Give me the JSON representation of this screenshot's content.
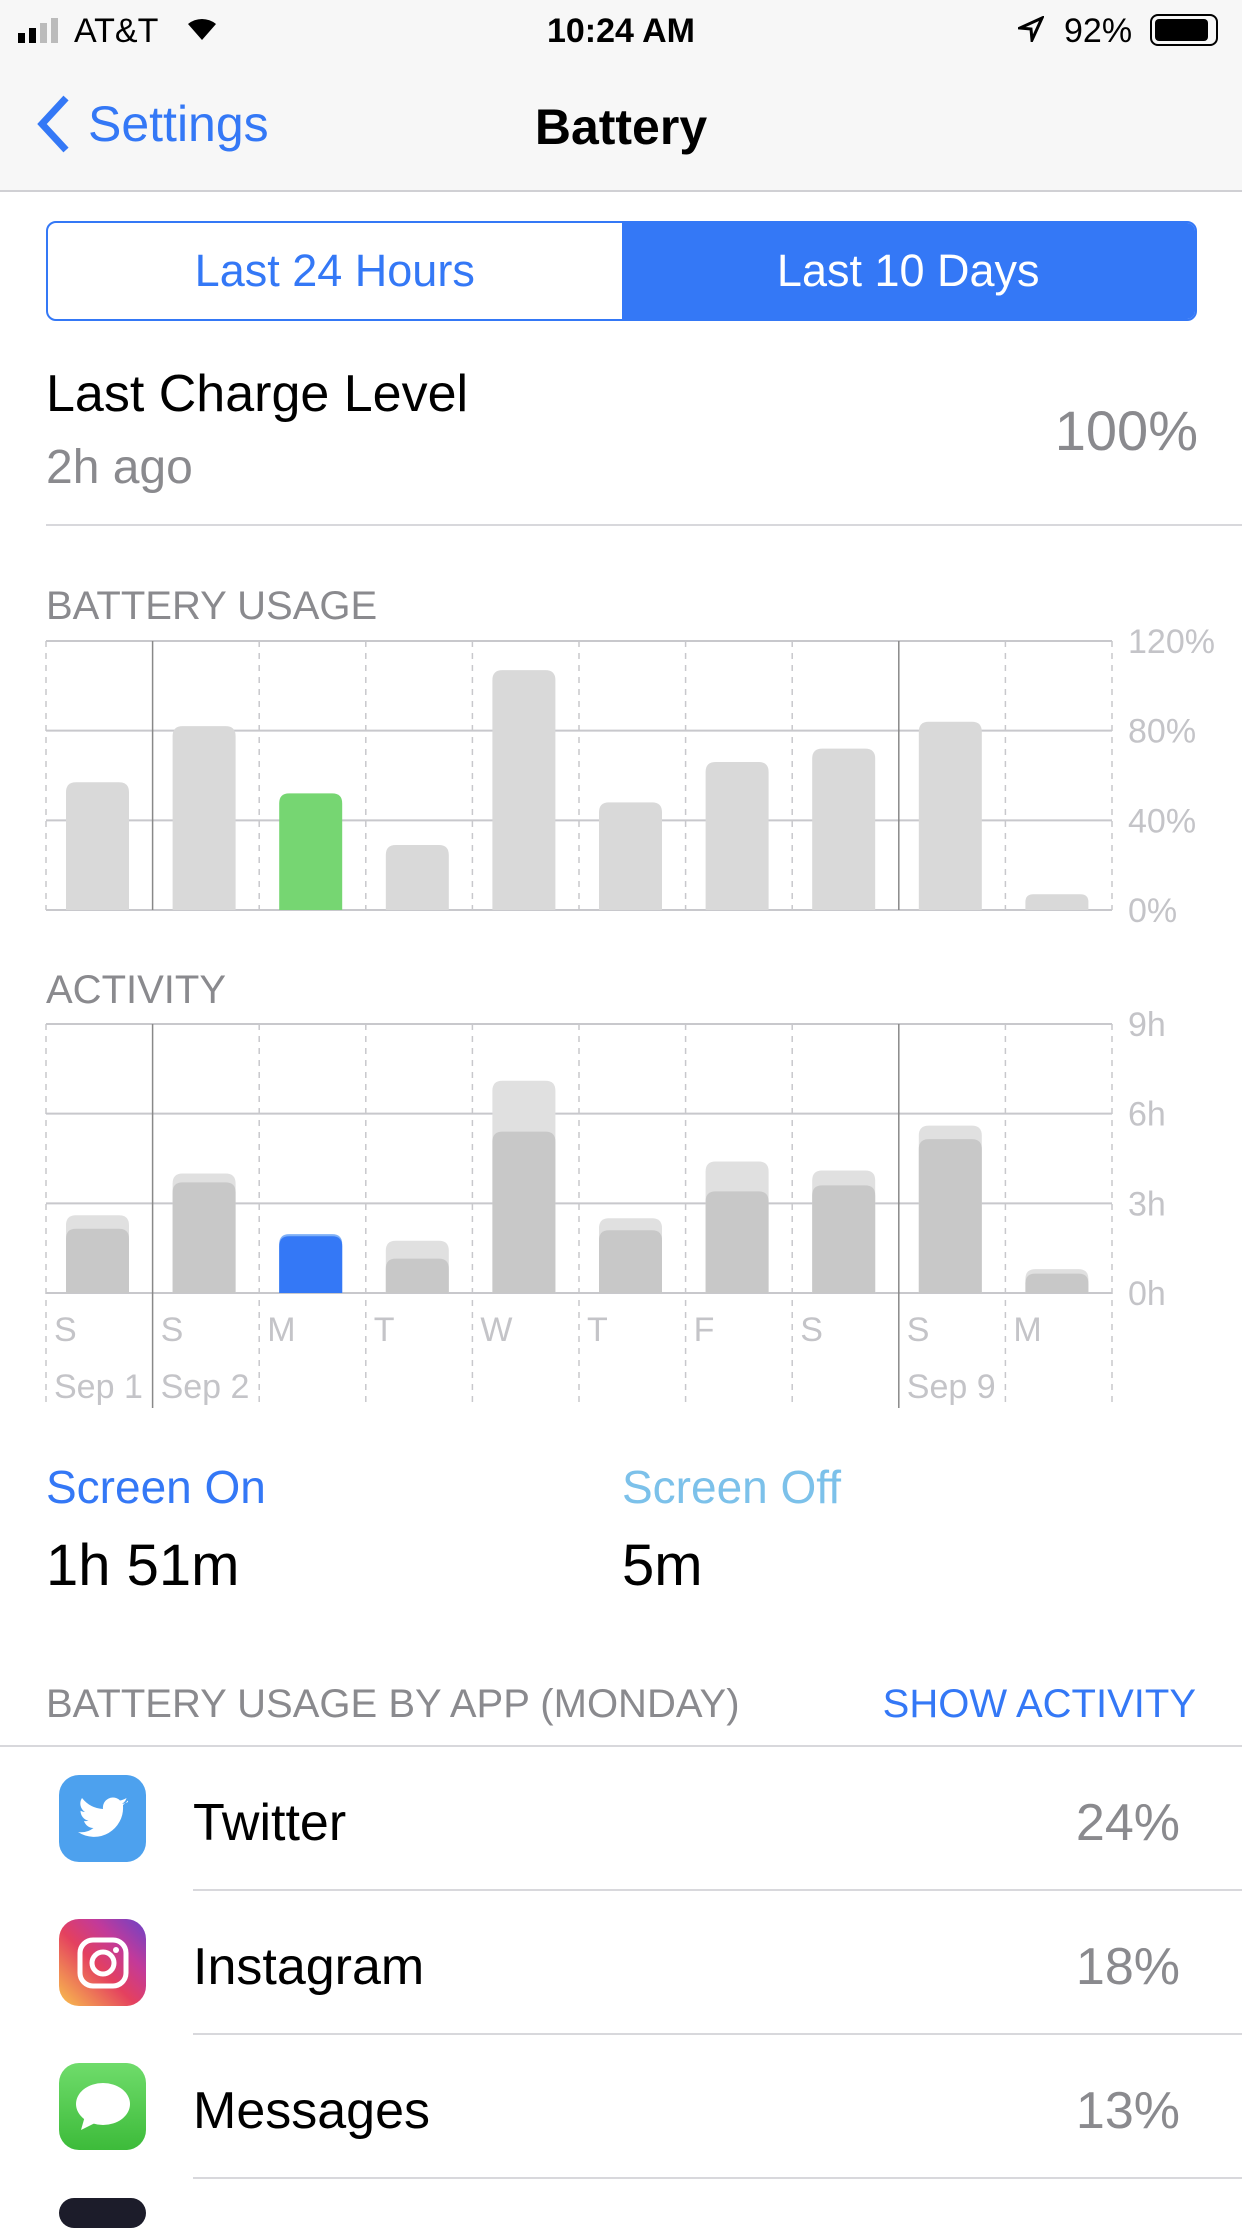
{
  "status": {
    "carrier": "AT&T",
    "time": "10:24 AM",
    "battery": "92%",
    "battery_level": 0.92
  },
  "nav": {
    "back": "Settings",
    "title": "Battery"
  },
  "segments": [
    {
      "label": "Last 24 Hours",
      "selected": false
    },
    {
      "label": "Last 10 Days",
      "selected": true
    }
  ],
  "last_charge": {
    "title": "Last Charge Level",
    "time": "2h ago",
    "value": "100%"
  },
  "chart_data": [
    {
      "type": "bar",
      "title": "BATTERY USAGE",
      "categories": [
        "S",
        "S",
        "M",
        "T",
        "W",
        "T",
        "F",
        "S",
        "S",
        "M"
      ],
      "date_labels": [
        "Sep 1",
        "Sep 2",
        "",
        "",
        "",
        "",
        "",
        "",
        "Sep 9",
        ""
      ],
      "values": [
        57,
        82,
        52,
        29,
        107,
        48,
        66,
        72,
        84,
        7
      ],
      "unit": "%",
      "ylim": [
        0,
        120
      ],
      "yticks": [
        "120%",
        "80%",
        "40%",
        "0%"
      ],
      "selected_index": 2,
      "colors": {
        "bar": "#d9d9d9",
        "selected": "#76d672"
      }
    },
    {
      "type": "bar",
      "title": "ACTIVITY",
      "categories": [
        "S",
        "S",
        "M",
        "T",
        "W",
        "T",
        "F",
        "S",
        "S",
        "M"
      ],
      "series": [
        {
          "values": [
            2.6,
            4.0,
            1.97,
            1.75,
            7.1,
            2.5,
            4.4,
            4.1,
            5.6,
            0.8
          ]
        },
        {
          "values": [
            2.15,
            3.7,
            1.9,
            1.15,
            5.4,
            2.1,
            3.4,
            3.6,
            5.15,
            0.65
          ]
        }
      ],
      "unit": "h",
      "ylim": [
        0,
        9
      ],
      "yticks": [
        "9h",
        "6h",
        "3h",
        "0h"
      ],
      "selected_index": 2,
      "colors": {
        "total": "#e0e0e0",
        "screen_on": "#c8c8c8",
        "selected": "#3478f6"
      }
    }
  ],
  "screen": {
    "on_label": "Screen On",
    "on_value": "1h 51m",
    "off_label": "Screen Off",
    "off_value": "5m"
  },
  "apps_header": {
    "title": "BATTERY USAGE BY APP (MONDAY)",
    "action": "SHOW ACTIVITY"
  },
  "apps": [
    {
      "name": "Twitter",
      "percent": "24%",
      "icon": "twitter-icon"
    },
    {
      "name": "Instagram",
      "percent": "18%",
      "icon": "instagram-icon"
    },
    {
      "name": "Messages",
      "percent": "13%",
      "icon": "messages-icon"
    }
  ]
}
